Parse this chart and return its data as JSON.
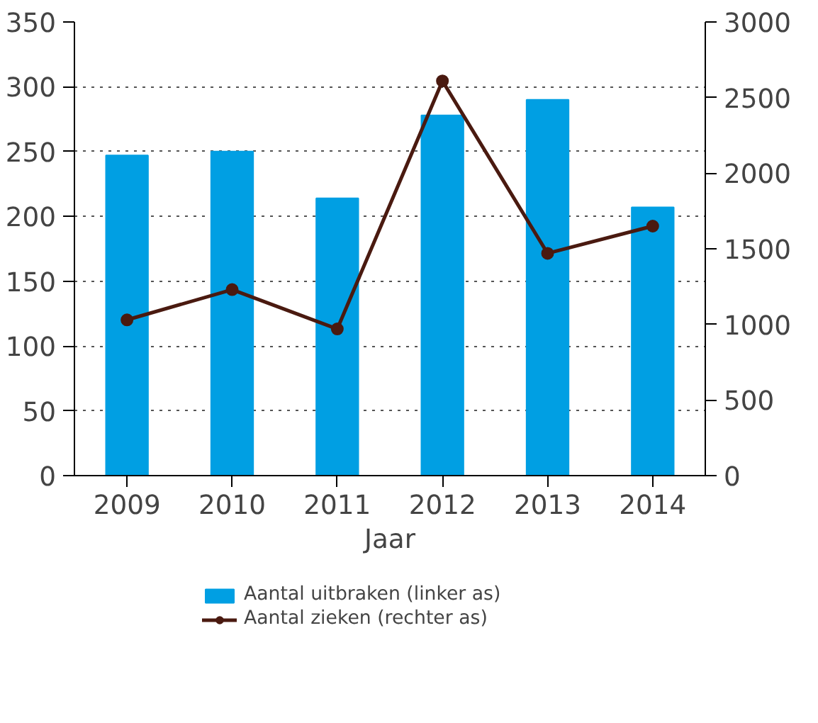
{
  "chart_data": {
    "type": "bar",
    "xlabel": "Jaar",
    "categories": [
      "2009",
      "2010",
      "2011",
      "2012",
      "2013",
      "2014"
    ],
    "series": [
      {
        "name": "Aantal uitbraken (linker as)",
        "color": "#009fe3",
        "values": [
          247,
          250,
          214,
          278,
          290,
          207
        ]
      },
      {
        "name": "Aantal zieken (rechter as)",
        "type": "line",
        "axis": "y2",
        "color": "#4a1a10",
        "values": [
          1030,
          1230,
          970,
          2610,
          1470,
          1650
        ]
      }
    ],
    "ylim": [
      0,
      350
    ],
    "yticks": [
      0,
      50,
      100,
      150,
      200,
      250,
      300,
      350
    ],
    "y2lim": [
      0,
      3000
    ],
    "y2ticks": [
      0,
      500,
      1000,
      1500,
      2000,
      2500,
      3000
    ],
    "grid": "y",
    "legend": "bottom",
    "marker": "circle",
    "line_style": "solid"
  }
}
